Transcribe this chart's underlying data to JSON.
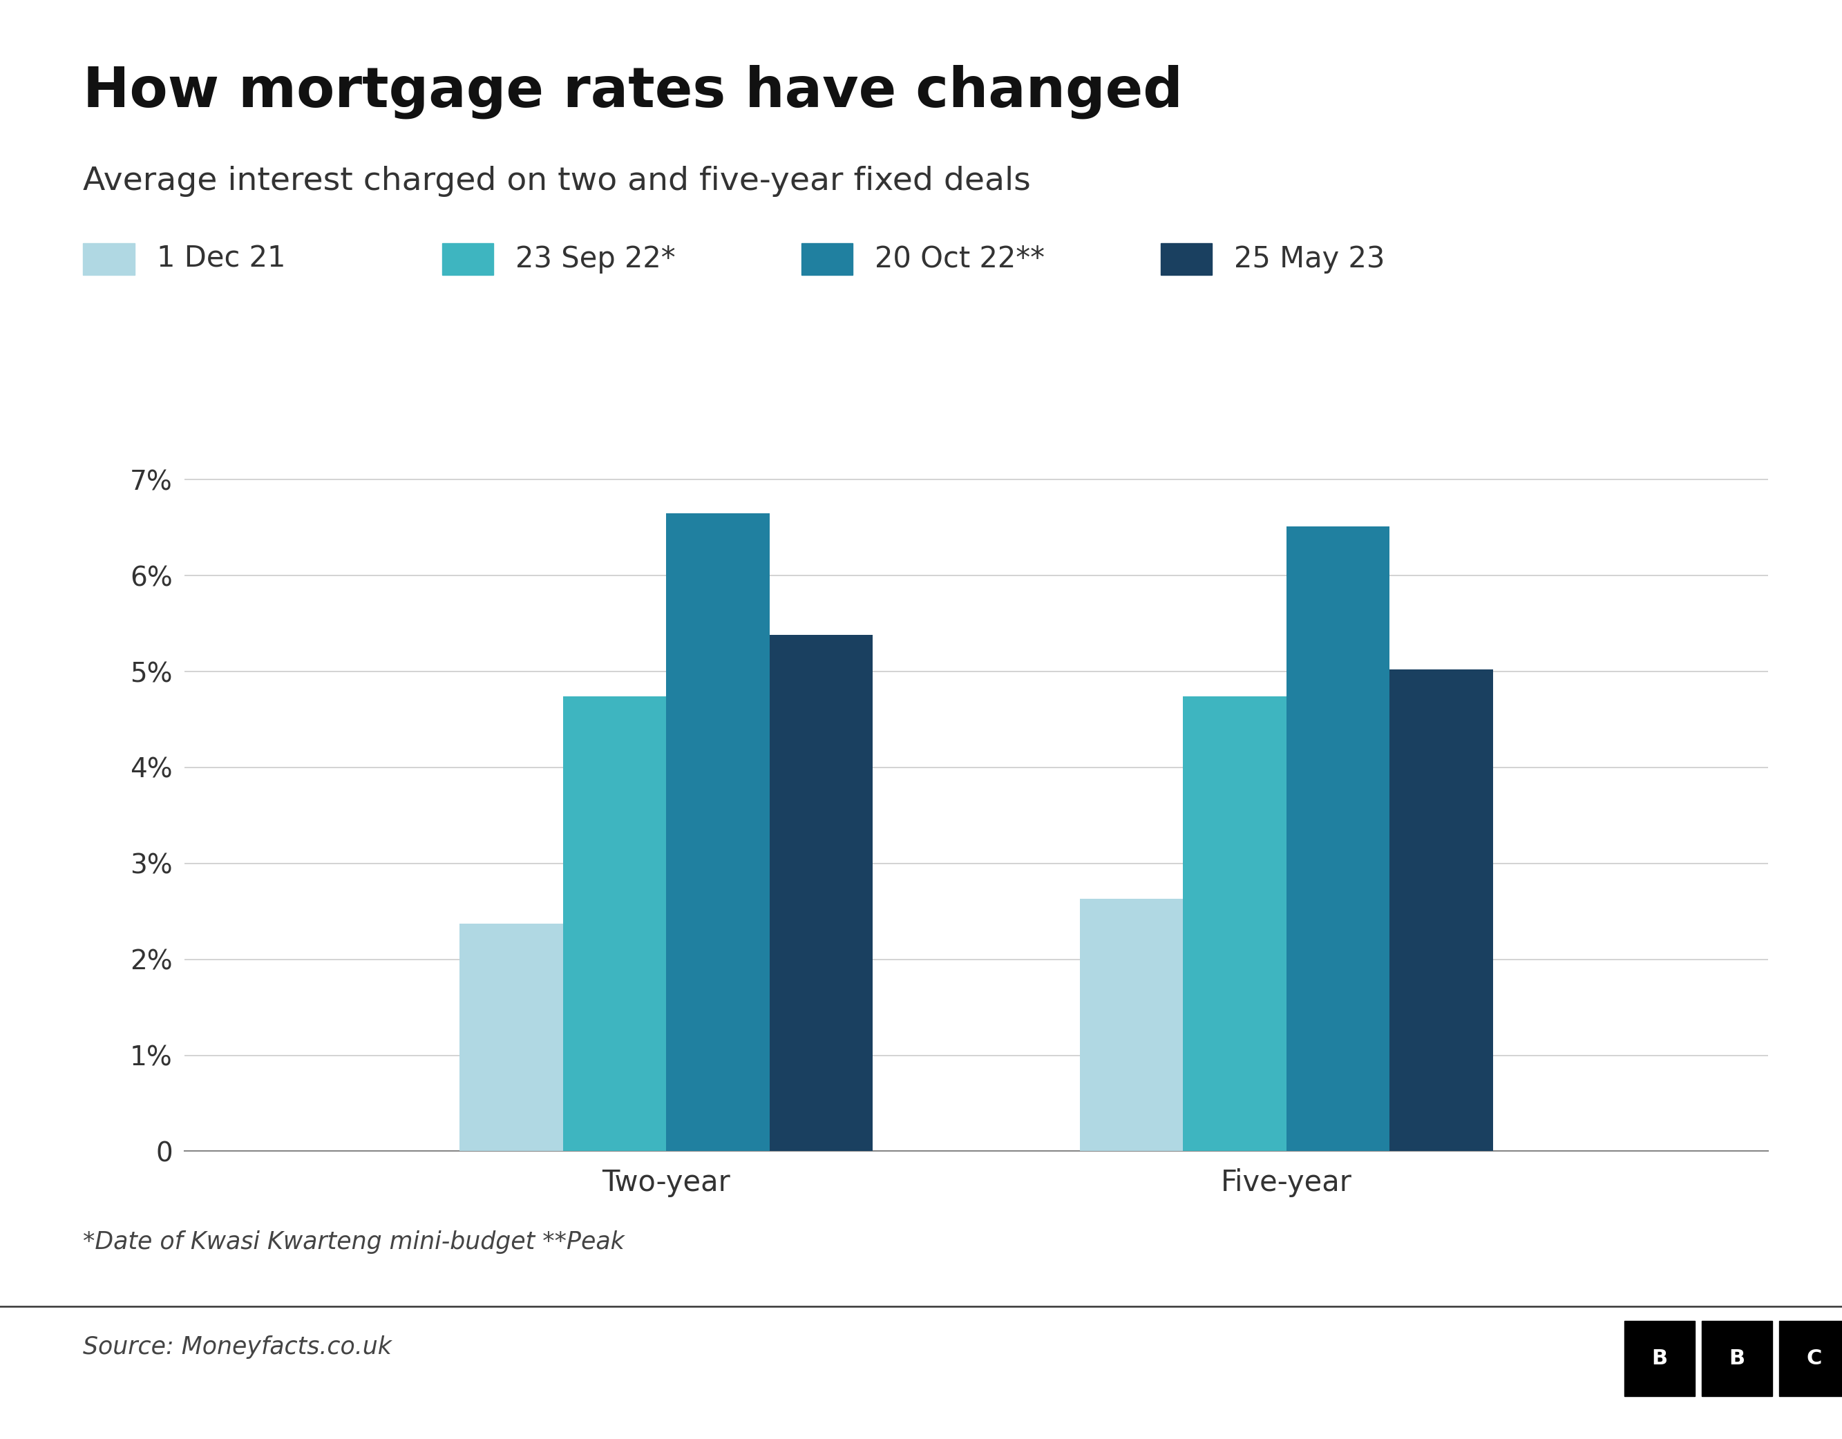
{
  "title": "How mortgage rates have changed",
  "subtitle": "Average interest charged on two and five-year fixed deals",
  "legend_labels": [
    "1 Dec 21",
    "23 Sep 22*",
    "20 Oct 22**",
    "25 May 23"
  ],
  "legend_colors": [
    "#b0d8e3",
    "#3eb5c0",
    "#2080a0",
    "#1a4060"
  ],
  "categories": [
    "Two-year",
    "Five-year"
  ],
  "values": [
    [
      2.37,
      4.74,
      6.65,
      5.38
    ],
    [
      2.63,
      4.74,
      6.51,
      5.02
    ]
  ],
  "ylim": [
    0,
    0.075
  ],
  "yticks": [
    0,
    0.01,
    0.02,
    0.03,
    0.04,
    0.05,
    0.06,
    0.07
  ],
  "ytick_labels": [
    "0",
    "1%",
    "2%",
    "3%",
    "4%",
    "5%",
    "6%",
    "7%"
  ],
  "footnote": "*Date of Kwasi Kwarteng mini-budget **Peak",
  "source": "Source: Moneyfacts.co.uk",
  "background_color": "#ffffff",
  "title_fontsize": 58,
  "subtitle_fontsize": 34,
  "legend_fontsize": 30,
  "tick_fontsize": 28,
  "xtick_fontsize": 30,
  "footnote_fontsize": 25,
  "source_fontsize": 25
}
